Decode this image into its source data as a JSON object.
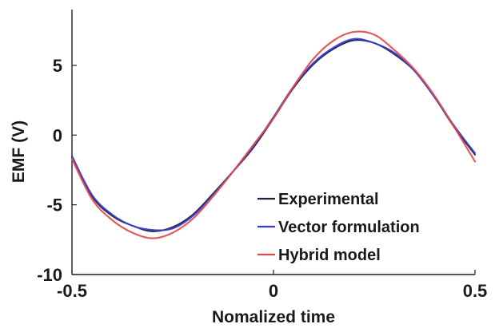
{
  "chart_data": {
    "type": "line",
    "title": "",
    "xlabel": "Nomalized time",
    "ylabel": "EMF (V)",
    "xlim": [
      -0.5,
      0.5
    ],
    "ylim": [
      -10,
      9
    ],
    "x_ticks": [
      -0.5,
      0,
      0.5
    ],
    "x_tick_labels": [
      "-0.5",
      "0",
      "0.5"
    ],
    "y_ticks": [
      -10,
      -5,
      0,
      5
    ],
    "y_tick_labels": [
      "-10",
      "-5",
      "0",
      "5"
    ],
    "grid": false,
    "legend_position": "bottom-right",
    "x": [
      -0.5,
      -0.45,
      -0.4,
      -0.35,
      -0.3,
      -0.25,
      -0.2,
      -0.15,
      -0.1,
      -0.05,
      0.0,
      0.05,
      0.1,
      0.15,
      0.2,
      0.25,
      0.3,
      0.35,
      0.4,
      0.45,
      0.5
    ],
    "series": [
      {
        "name": "Experimental",
        "color": "#1f1f3a",
        "values": [
          -1.6,
          -4.4,
          -5.8,
          -6.5,
          -6.9,
          -6.6,
          -5.7,
          -4.2,
          -2.6,
          -0.9,
          1.2,
          3.4,
          5.1,
          6.2,
          6.8,
          6.6,
          5.8,
          4.6,
          2.7,
          0.5,
          -1.4
        ]
      },
      {
        "name": "Vector formulation",
        "color": "#3a3ad6",
        "values": [
          -1.5,
          -4.3,
          -5.7,
          -6.5,
          -6.8,
          -6.7,
          -5.8,
          -4.3,
          -2.6,
          -0.8,
          1.3,
          3.5,
          5.2,
          6.3,
          6.9,
          6.6,
          5.9,
          4.6,
          2.7,
          0.6,
          -1.3
        ]
      },
      {
        "name": "Hybrid model",
        "color": "#e04a4a",
        "values": [
          -1.7,
          -4.6,
          -6.1,
          -7.0,
          -7.4,
          -7.0,
          -6.0,
          -4.4,
          -2.6,
          -0.7,
          1.2,
          3.5,
          5.5,
          6.8,
          7.4,
          7.2,
          6.1,
          4.7,
          2.8,
          0.5,
          -1.9
        ]
      }
    ]
  }
}
